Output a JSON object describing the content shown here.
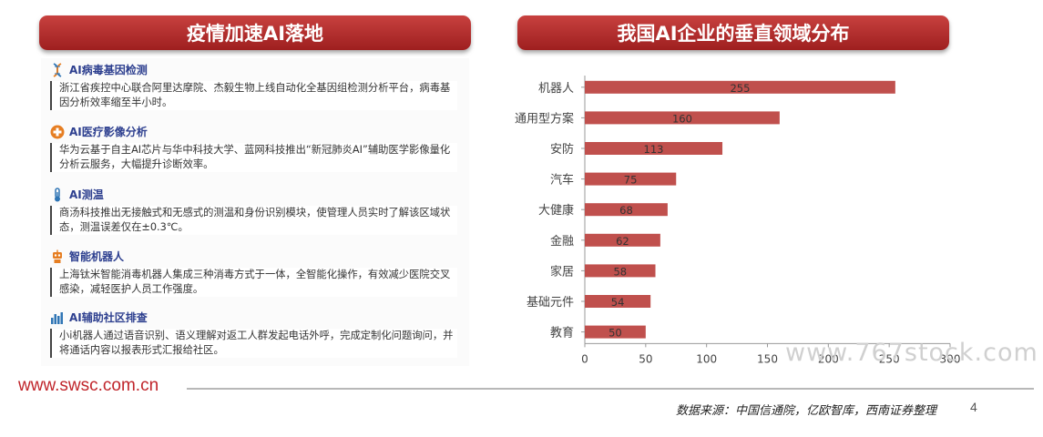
{
  "left_panel": {
    "title": "疫情加速AI落地",
    "items": [
      {
        "icon": "dna-icon",
        "title": "AI病毒基因检测",
        "text": "浙江省疾控中心联合阿里达摩院、杰毅生物上线自动化全基因组检测分析平台，病毒基因分析效率缩至半小时。"
      },
      {
        "icon": "medical-cross-icon",
        "title": "AI医疗影像分析",
        "text": "华为云基于自主AI芯片与华中科技大学、蓝网科技推出“新冠肺炎AI”辅助医学影像量化分析云服务，大幅提升诊断效率。"
      },
      {
        "icon": "thermometer-icon",
        "title": "AI测温",
        "text": "商汤科技推出无接触式和无感式的测温和身份识别模块，使管理人员实时了解该区域状态，测温误差仅在±0.3℃。"
      },
      {
        "icon": "robot-icon",
        "title": "智能机器人",
        "text": "上海钛米智能消毒机器人集成三种消毒方式于一体，全智能化操作，有效减少医院交叉感染，减轻医护人员工作强度。"
      },
      {
        "icon": "bar-chart-icon",
        "title": "AI辅助社区排查",
        "text": "小i机器人通过语音识别、语义理解对返工人群发起电话外呼，完成定制化问题询问，并将通话内容以报表形式汇报给社区。"
      }
    ]
  },
  "right_panel": {
    "title": "我国AI企业的垂直领域分布"
  },
  "chart_data": {
    "type": "bar",
    "orientation": "horizontal",
    "categories": [
      "机器人",
      "通用型方案",
      "安防",
      "汽车",
      "大健康",
      "金融",
      "家居",
      "基础元件",
      "教育"
    ],
    "values": [
      255,
      160,
      113,
      75,
      68,
      62,
      58,
      54,
      50
    ],
    "xlim": [
      0,
      300
    ],
    "xticks": [
      0,
      50,
      100,
      150,
      200,
      250,
      300
    ],
    "bar_color": "#c0504d",
    "grid": false,
    "legend": "none"
  },
  "watermark": "www.767stock.com",
  "footer": {
    "website": "www.swsc.com.cn",
    "source": "数据来源：中国信通院，亿欧智库，西南证券整理",
    "page_number": "4"
  }
}
